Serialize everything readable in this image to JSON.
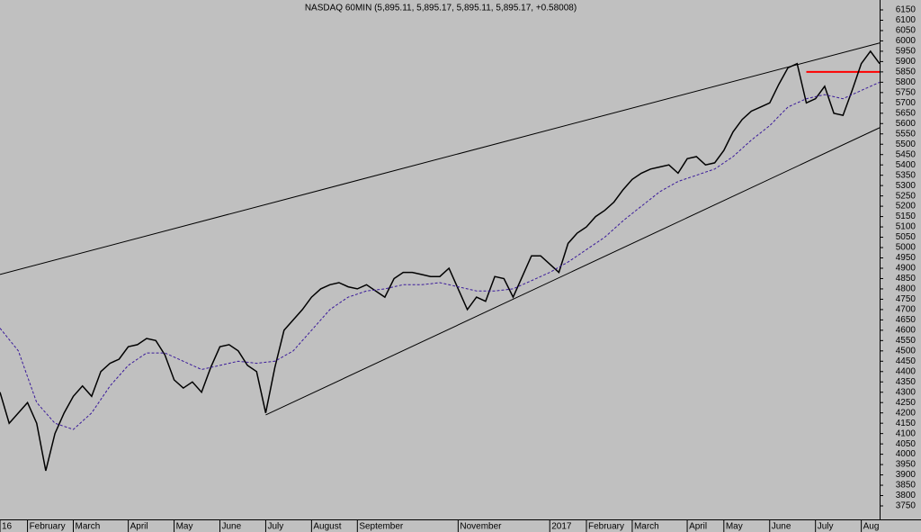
{
  "chart_data": {
    "type": "line",
    "title": "NASDAQ 60MIN (5,895.11, 5,895.17, 5,895.11, 5,895.17, +0.58008)",
    "categories": [
      "16",
      null,
      null,
      "February",
      null,
      null,
      null,
      null,
      "March",
      null,
      null,
      null,
      null,
      null,
      "April",
      null,
      null,
      null,
      null,
      "May",
      null,
      null,
      null,
      null,
      "June",
      null,
      null,
      null,
      null,
      "July",
      null,
      null,
      null,
      null,
      "August",
      null,
      null,
      null,
      null,
      "September",
      null,
      null,
      null,
      null,
      null,
      null,
      null,
      null,
      null,
      null,
      "November",
      null,
      null,
      null,
      null,
      null,
      null,
      null,
      null,
      null,
      "2017",
      null,
      null,
      null,
      "February",
      null,
      null,
      null,
      null,
      "March",
      null,
      null,
      null,
      null,
      null,
      "April",
      null,
      null,
      null,
      "May",
      null,
      null,
      null,
      null,
      "June",
      null,
      null,
      null,
      null,
      "July",
      null,
      null,
      null,
      null,
      "Aug",
      null,
      null
    ],
    "series": [
      {
        "color": "#000000",
        "values": [
          4300,
          4150,
          4200,
          4250,
          4150,
          3920,
          4100,
          4200,
          4280,
          4330,
          4280,
          4400,
          4440,
          4460,
          4520,
          4530,
          4560,
          4550,
          4480,
          4360,
          4320,
          4350,
          4300,
          4420,
          4520,
          4530,
          4500,
          4430,
          4400,
          4200,
          4420,
          4600,
          4650,
          4700,
          4760,
          4800,
          4820,
          4830,
          4810,
          4800,
          4820,
          4790,
          4760,
          4850,
          4880,
          4880,
          4870,
          4860,
          4860,
          4900,
          4800,
          4700,
          4760,
          4740,
          4860,
          4850,
          4760,
          4860,
          4960,
          4960,
          4920,
          4880,
          5020,
          5070,
          5100,
          5150,
          5180,
          5220,
          5280,
          5330,
          5360,
          5380,
          5390,
          5400,
          5360,
          5430,
          5440,
          5400,
          5410,
          5470,
          5560,
          5620,
          5660,
          5680,
          5700,
          5790,
          5870,
          5890,
          5700,
          5720,
          5780,
          5650,
          5640,
          5760,
          5890,
          5950,
          5890
        ]
      },
      {
        "color": "#3a1a9a",
        "dashed": true,
        "values": [
          4610,
          4555,
          4500,
          4375,
          4250,
          4200,
          4150,
          4135,
          4120,
          4160,
          4200,
          4265,
          4330,
          4380,
          4430,
          4460,
          4490,
          4490,
          4490,
          4470,
          4450,
          4430,
          4410,
          4420,
          4430,
          4440,
          4450,
          4445,
          4440,
          4445,
          4450,
          4475,
          4500,
          4550,
          4600,
          4650,
          4700,
          4730,
          4760,
          4775,
          4790,
          4795,
          4800,
          4810,
          4820,
          4820,
          4820,
          4825,
          4830,
          4820,
          4810,
          4800,
          4790,
          4790,
          4790,
          4795,
          4800,
          4820,
          4840,
          4860,
          4880,
          4905,
          4930,
          4960,
          4990,
          5020,
          5050,
          5090,
          5130,
          5165,
          5200,
          5235,
          5270,
          5295,
          5320,
          5335,
          5350,
          5365,
          5380,
          5410,
          5440,
          5480,
          5520,
          5555,
          5590,
          5635,
          5680,
          5700,
          5720,
          5730,
          5740,
          5730,
          5720,
          5740,
          5760,
          5780,
          5800
        ]
      }
    ],
    "trendlines": [
      {
        "color": "#000000",
        "x": [
          0,
          96
        ],
        "values": [
          4870,
          5990
        ]
      },
      {
        "color": "#000000",
        "x": [
          29,
          96
        ],
        "values": [
          4190,
          5580
        ]
      },
      {
        "color": "#ff0000",
        "x": [
          88,
          96
        ],
        "values": [
          5850,
          5850
        ]
      }
    ],
    "ylim": [
      3750,
      6150
    ],
    "yticks": [
      3750,
      3800,
      3850,
      3900,
      3950,
      4000,
      4050,
      4100,
      4150,
      4200,
      4250,
      4300,
      4350,
      4400,
      4450,
      4500,
      4550,
      4600,
      4650,
      4700,
      4750,
      4800,
      4850,
      4900,
      4950,
      5000,
      5050,
      5100,
      5150,
      5200,
      5250,
      5300,
      5350,
      5400,
      5450,
      5500,
      5550,
      5600,
      5650,
      5700,
      5750,
      5800,
      5850,
      5900,
      5950,
      6000,
      6050,
      6100,
      6150
    ]
  }
}
